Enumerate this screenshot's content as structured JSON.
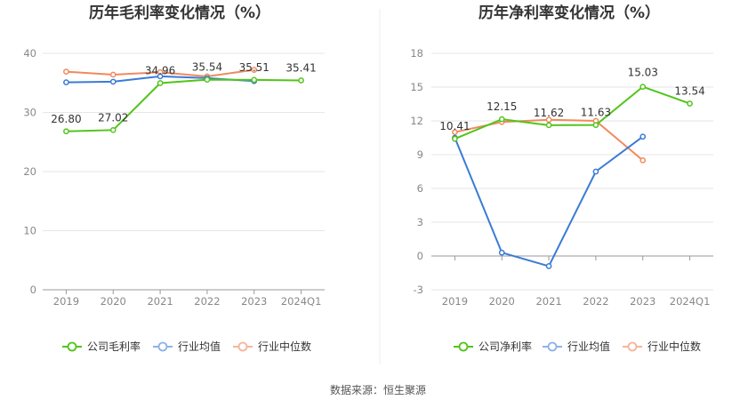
{
  "source": "数据来源：恒生聚源",
  "chart_data": [
    {
      "type": "line",
      "title": "历年毛利率变化情况（%）",
      "categories": [
        "2019",
        "2020",
        "2021",
        "2022",
        "2023",
        "2024Q1"
      ],
      "ylim": [
        0,
        40
      ],
      "yticks": [
        "0",
        "10",
        "20",
        "30",
        "40"
      ],
      "grid": true,
      "legend_position": "bottom",
      "series": [
        {
          "name": "公司毛利率",
          "color": "#52c41a",
          "values": [
            26.8,
            27.02,
            34.96,
            35.54,
            35.51,
            35.41
          ],
          "labels": [
            "26.80",
            "27.02",
            "34.96",
            "35.54",
            "35.51",
            "35.41"
          ]
        },
        {
          "name": "行业均值",
          "color": "#3a7bd5",
          "values": [
            35.1,
            35.2,
            36.1,
            35.8,
            35.3,
            null
          ]
        },
        {
          "name": "行业中位数",
          "color": "#f08a5d",
          "values": [
            36.9,
            36.4,
            36.8,
            36.1,
            37.2,
            null
          ]
        }
      ]
    },
    {
      "type": "line",
      "title": "历年净利率变化情况（%）",
      "categories": [
        "2019",
        "2020",
        "2021",
        "2022",
        "2023",
        "2024Q1"
      ],
      "ylim": [
        -3,
        18
      ],
      "yticks": [
        "-3",
        "0",
        "3",
        "6",
        "9",
        "12",
        "15",
        "18"
      ],
      "grid": true,
      "legend_position": "bottom",
      "series": [
        {
          "name": "公司净利率",
          "color": "#52c41a",
          "values": [
            10.41,
            12.15,
            11.62,
            11.63,
            15.03,
            13.54
          ],
          "labels": [
            "10.41",
            "12.15",
            "11.62",
            "11.63",
            "15.03",
            "13.54"
          ]
        },
        {
          "name": "行业均值",
          "color": "#3a7bd5",
          "values": [
            10.5,
            0.3,
            -0.9,
            7.5,
            10.6,
            null
          ]
        },
        {
          "name": "行业中位数",
          "color": "#f08a5d",
          "values": [
            11.0,
            11.9,
            12.1,
            12.0,
            8.5,
            null
          ]
        }
      ]
    }
  ]
}
